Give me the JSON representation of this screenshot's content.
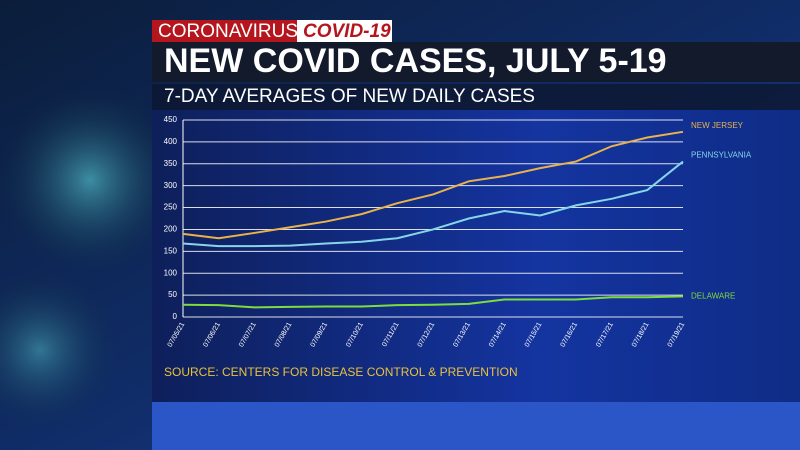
{
  "header": {
    "label": "CORONAVIRUS",
    "tag": "COVID-19"
  },
  "chart_data": {
    "type": "line",
    "title": "NEW COVID CASES, JULY 5-19",
    "subtitle": "7-DAY AVERAGES OF NEW DAILY CASES",
    "source": "SOURCE: CENTERS FOR DISEASE CONTROL & PREVENTION",
    "categories": [
      "07/05/21",
      "07/06/21",
      "07/07/21",
      "07/08/21",
      "07/09/21",
      "07/10/21",
      "07/11/21",
      "07/12/21",
      "07/13/21",
      "07/14/21",
      "07/15/21",
      "07/16/21",
      "07/17/21",
      "07/18/21",
      "07/19/21"
    ],
    "series": [
      {
        "name": "NEW JERSEY",
        "color": "#e9b24c",
        "values": [
          190,
          180,
          192,
          205,
          218,
          235,
          260,
          280,
          310,
          322,
          340,
          355,
          390,
          410,
          423
        ]
      },
      {
        "name": "PENNSYLVANIA",
        "color": "#86d6ea",
        "values": [
          168,
          162,
          162,
          163,
          168,
          172,
          180,
          200,
          225,
          242,
          232,
          255,
          270,
          290,
          355
        ]
      },
      {
        "name": "DELAWARE",
        "color": "#7fdc3e",
        "values": [
          28,
          27,
          22,
          23,
          24,
          24,
          27,
          28,
          30,
          40,
          40,
          40,
          45,
          45,
          47
        ]
      }
    ],
    "ylim": [
      0,
      450
    ],
    "yticks": [
      0,
      50,
      100,
      150,
      200,
      250,
      300,
      350,
      400,
      450
    ],
    "grid": true
  }
}
